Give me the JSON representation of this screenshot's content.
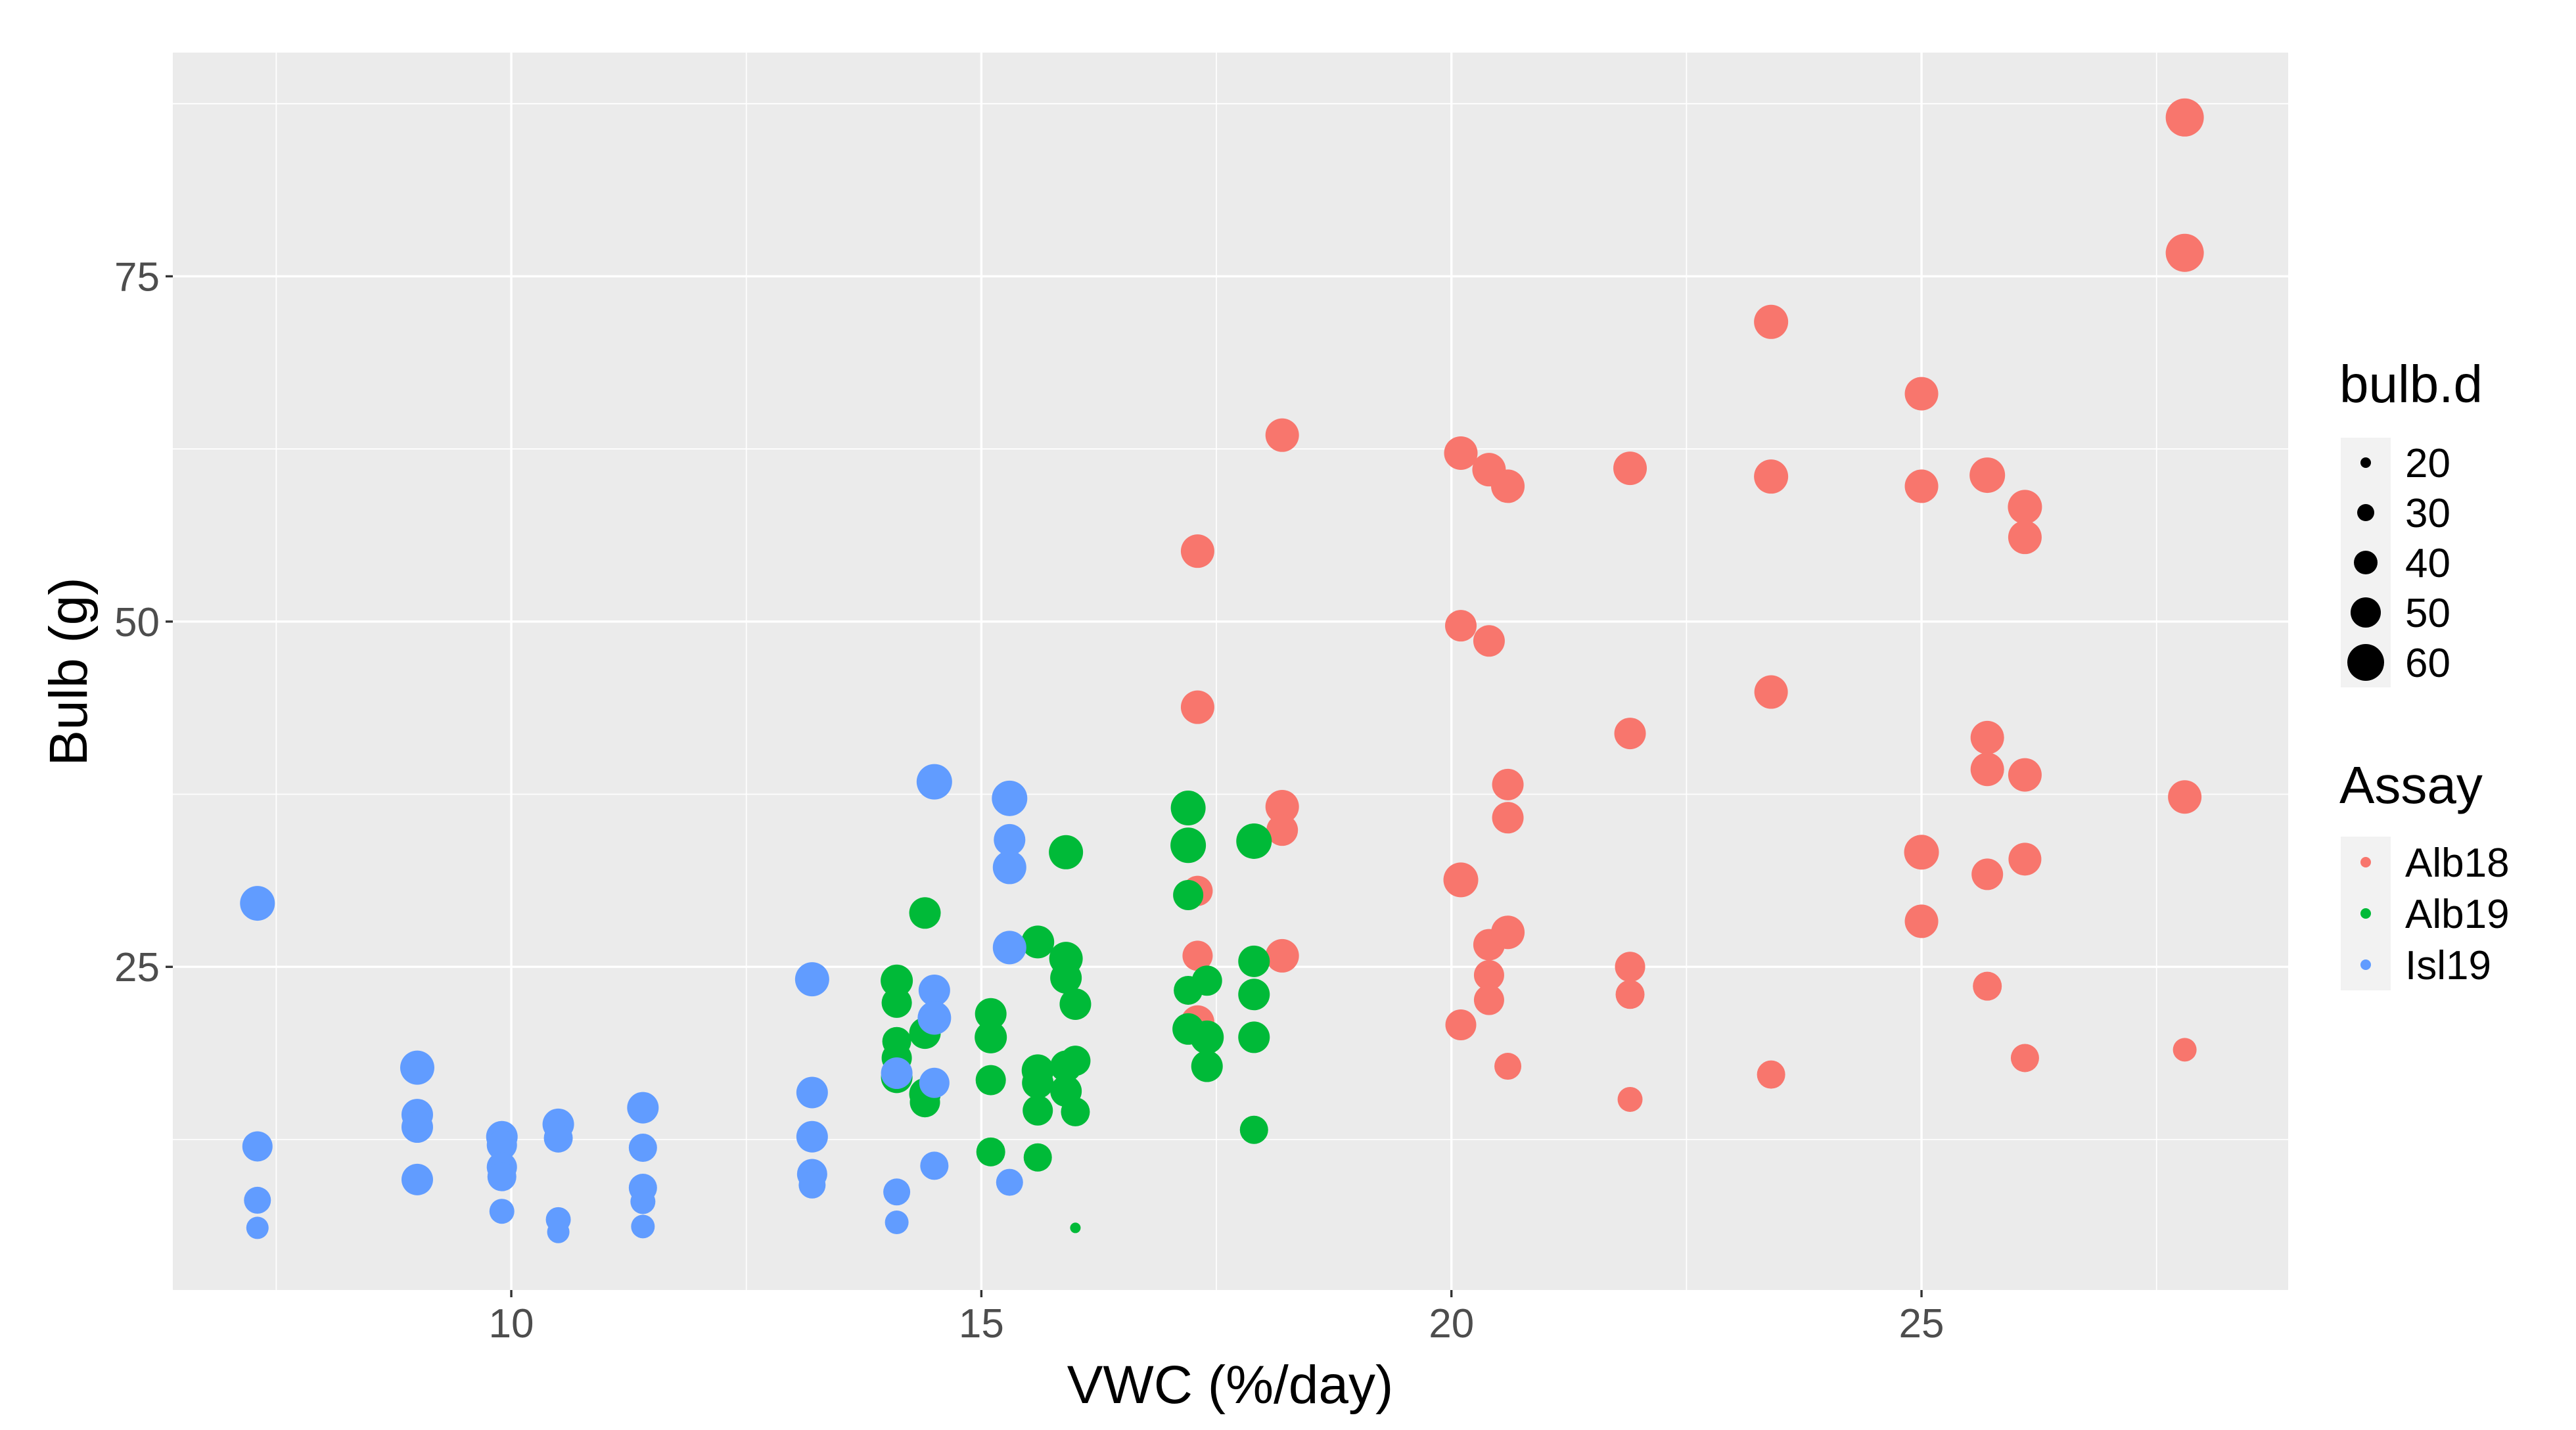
{
  "chart_data": {
    "type": "scatter",
    "title": "",
    "xlabel": "VWC (%/day)",
    "ylabel": "Bulb (g)",
    "xlim": [
      6.4,
      28.9
    ],
    "ylim": [
      1.6,
      91.2
    ],
    "x_ticks": [
      10,
      15,
      20,
      25
    ],
    "y_ticks": [
      25,
      50,
      75
    ],
    "x_tick_labels": [
      "10",
      "15",
      "20",
      "25"
    ],
    "y_tick_labels": [
      "25",
      "50",
      "75"
    ],
    "grid": true,
    "legend_position": "right",
    "size_legend": {
      "title": "bulb.d",
      "entries": [
        {
          "label": "20",
          "value": 20
        },
        {
          "label": "30",
          "value": 30
        },
        {
          "label": "40",
          "value": 40
        },
        {
          "label": "50",
          "value": 50
        },
        {
          "label": "60",
          "value": 60
        }
      ]
    },
    "color_legend": {
      "title": "Assay",
      "entries": [
        {
          "label": "Alb18",
          "color": "#F8766D"
        },
        {
          "label": "Alb19",
          "color": "#00BA38"
        },
        {
          "label": "Isl19",
          "color": "#619CFF"
        }
      ]
    },
    "series": [
      {
        "name": "Alb18",
        "color": "#F8766D",
        "points": [
          [
            27.8,
            86.5,
            62
          ],
          [
            27.8,
            76.7,
            62
          ],
          [
            27.8,
            37.3,
            55
          ],
          [
            27.8,
            19.0,
            40
          ],
          [
            25.0,
            66.5,
            55
          ],
          [
            25.0,
            59.8,
            55
          ],
          [
            25.0,
            33.3,
            57
          ],
          [
            25.0,
            28.3,
            55
          ],
          [
            25.7,
            60.6,
            58
          ],
          [
            25.7,
            41.6,
            55
          ],
          [
            25.7,
            39.3,
            55
          ],
          [
            25.7,
            31.7,
            52
          ],
          [
            25.7,
            23.6,
            48
          ],
          [
            26.1,
            58.3,
            56
          ],
          [
            26.1,
            56.1,
            55
          ],
          [
            26.1,
            38.9,
            55
          ],
          [
            26.1,
            32.8,
            54
          ],
          [
            26.1,
            18.4,
            47
          ],
          [
            23.4,
            71.7,
            56
          ],
          [
            23.4,
            60.5,
            56
          ],
          [
            23.4,
            44.9,
            55
          ],
          [
            23.4,
            17.2,
            47
          ],
          [
            21.9,
            61.1,
            55
          ],
          [
            21.9,
            41.9,
            52
          ],
          [
            21.9,
            25.0,
            50
          ],
          [
            21.9,
            23.0,
            48
          ],
          [
            21.9,
            15.4,
            42
          ],
          [
            20.1,
            62.2,
            55
          ],
          [
            20.1,
            49.7,
            52
          ],
          [
            20.1,
            31.3,
            57
          ],
          [
            20.1,
            20.8,
            51
          ],
          [
            20.4,
            61.0,
            55
          ],
          [
            20.4,
            48.6,
            52
          ],
          [
            20.4,
            26.6,
            52
          ],
          [
            20.4,
            24.4,
            50
          ],
          [
            20.4,
            22.6,
            50
          ],
          [
            20.6,
            59.8,
            55
          ],
          [
            20.6,
            38.2,
            52
          ],
          [
            20.6,
            35.8,
            52
          ],
          [
            20.6,
            27.5,
            55
          ],
          [
            20.6,
            17.8,
            45
          ],
          [
            18.2,
            63.5,
            55
          ],
          [
            18.2,
            36.6,
            55
          ],
          [
            18.2,
            34.9,
            52
          ],
          [
            18.2,
            25.8,
            55
          ],
          [
            17.3,
            55.1,
            55
          ],
          [
            17.3,
            43.8,
            55
          ],
          [
            17.3,
            30.5,
            50
          ],
          [
            17.3,
            25.8,
            50
          ],
          [
            17.3,
            21.0,
            55
          ]
        ]
      },
      {
        "name": "Alb19",
        "color": "#00BA38",
        "points": [
          [
            17.2,
            36.5,
            57
          ],
          [
            17.2,
            33.8,
            58
          ],
          [
            17.2,
            30.2,
            50
          ],
          [
            17.2,
            23.3,
            48
          ],
          [
            17.2,
            20.5,
            52
          ],
          [
            17.4,
            24.0,
            50
          ],
          [
            17.4,
            19.9,
            55
          ],
          [
            17.4,
            17.8,
            52
          ],
          [
            17.9,
            34.1,
            58
          ],
          [
            17.9,
            25.4,
            52
          ],
          [
            17.9,
            23.0,
            52
          ],
          [
            17.9,
            19.9,
            52
          ],
          [
            17.9,
            13.2,
            47
          ],
          [
            15.9,
            33.3,
            56
          ],
          [
            15.9,
            25.6,
            55
          ],
          [
            15.9,
            24.2,
            52
          ],
          [
            15.9,
            17.8,
            52
          ],
          [
            15.9,
            16.0,
            52
          ],
          [
            16.0,
            22.3,
            52
          ],
          [
            16.0,
            18.2,
            50
          ],
          [
            16.0,
            14.5,
            48
          ],
          [
            16.0,
            6.1,
            20
          ],
          [
            15.6,
            26.8,
            54
          ],
          [
            15.6,
            17.5,
            53
          ],
          [
            15.6,
            16.6,
            52
          ],
          [
            15.6,
            14.6,
            50
          ],
          [
            15.6,
            11.2,
            47
          ],
          [
            15.1,
            21.6,
            52
          ],
          [
            15.1,
            19.9,
            53
          ],
          [
            15.1,
            16.8,
            50
          ],
          [
            15.1,
            11.6,
            48
          ],
          [
            14.4,
            28.9,
            52
          ],
          [
            14.4,
            20.2,
            52
          ],
          [
            14.4,
            15.8,
            52
          ],
          [
            14.4,
            15.2,
            50
          ],
          [
            14.1,
            24.0,
            53
          ],
          [
            14.1,
            22.4,
            50
          ],
          [
            14.1,
            19.6,
            48
          ],
          [
            14.1,
            18.4,
            50
          ],
          [
            14.1,
            17.0,
            52
          ]
        ]
      },
      {
        "name": "Isl19",
        "color": "#619CFF",
        "points": [
          [
            7.3,
            29.6,
            57
          ],
          [
            7.3,
            12.0,
            50
          ],
          [
            7.3,
            8.1,
            45
          ],
          [
            7.3,
            6.1,
            38
          ],
          [
            9.0,
            17.7,
            56
          ],
          [
            9.0,
            14.3,
            52
          ],
          [
            9.0,
            13.4,
            52
          ],
          [
            9.0,
            9.6,
            52
          ],
          [
            9.9,
            12.7,
            52
          ],
          [
            9.9,
            12.1,
            50
          ],
          [
            9.9,
            10.5,
            50
          ],
          [
            9.9,
            9.8,
            48
          ],
          [
            9.9,
            7.3,
            42
          ],
          [
            10.5,
            13.6,
            52
          ],
          [
            10.5,
            12.6,
            48
          ],
          [
            10.5,
            6.7,
            42
          ],
          [
            10.5,
            5.8,
            38
          ],
          [
            11.4,
            14.8,
            52
          ],
          [
            11.4,
            11.9,
            47
          ],
          [
            11.4,
            9.0,
            47
          ],
          [
            11.4,
            8.0,
            42
          ],
          [
            11.4,
            6.2,
            40
          ],
          [
            13.2,
            24.1,
            56
          ],
          [
            13.2,
            15.9,
            52
          ],
          [
            13.2,
            12.7,
            52
          ],
          [
            13.2,
            10.0,
            50
          ],
          [
            13.2,
            9.2,
            45
          ],
          [
            14.1,
            17.3,
            52
          ],
          [
            14.1,
            8.7,
            45
          ],
          [
            14.1,
            6.5,
            40
          ],
          [
            14.5,
            38.4,
            58
          ],
          [
            14.5,
            23.3,
            52
          ],
          [
            14.5,
            21.3,
            55
          ],
          [
            14.5,
            16.6,
            50
          ],
          [
            14.5,
            10.6,
            47
          ],
          [
            15.3,
            37.2,
            58
          ],
          [
            15.3,
            34.2,
            52
          ],
          [
            15.3,
            32.2,
            55
          ],
          [
            15.3,
            26.4,
            55
          ],
          [
            15.3,
            9.4,
            45
          ]
        ]
      }
    ]
  }
}
